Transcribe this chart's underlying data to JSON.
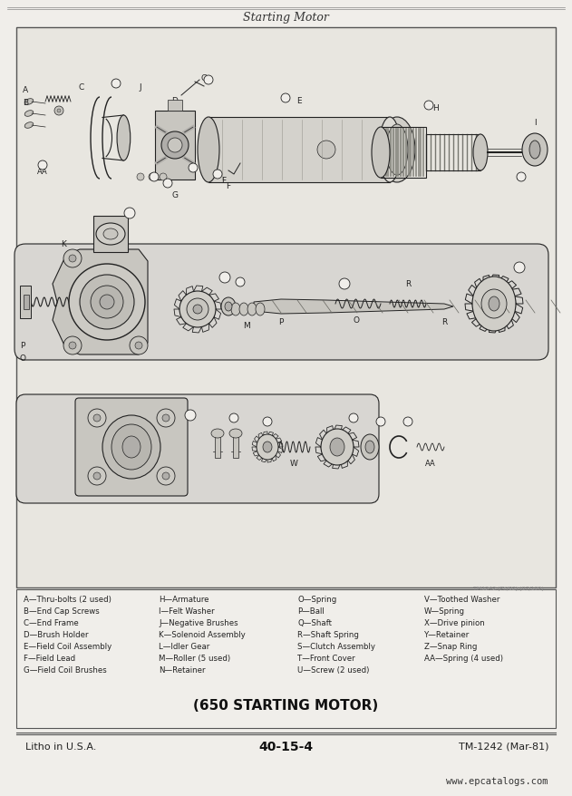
{
  "title": "Starting Motor",
  "subtitle": "(650 STARTING MOTOR)",
  "page_num": "40-15-4",
  "tm_num": "TM-1242 (Mar-81)",
  "litho": "Litho in U.S.A.",
  "website": "www.epcatalogs.com",
  "bg_color": "#f0eeea",
  "page_bg": "#f0eeea",
  "diagram_bg": "#e8e6e0",
  "border_color": "#555555",
  "line_color": "#222222",
  "fill_light": "#d8d6d0",
  "fill_mid": "#c8c6c0",
  "fill_dark": "#b0aeaa",
  "fill_white": "#f0eeea",
  "legend_col1": [
    "A—Thru-bolts (2 used)",
    "B—End Cap Screws",
    "C—End Frame",
    "D—Brush Holder",
    "E—Field Coil Assembly",
    "F—Field Lead",
    "G—Field Coil Brushes"
  ],
  "legend_col2": [
    "H—Armature",
    "I—Felt Washer",
    "J—Negative Brushes",
    "K—Solenoid Assembly",
    "L—Idler Gear",
    "M—Roller (5 used)",
    "N—Retainer"
  ],
  "legend_col3": [
    "O—Spring",
    "P—Ball",
    "Q—Shaft",
    "R—Shaft Spring",
    "S—Clutch Assembly",
    "T—Front Cover",
    "U—Screw (2 used)"
  ],
  "legend_col4": [
    "V—Toothed Washer",
    "W—Spring",
    "X—Drive pinion",
    "Y—Retainer",
    "Z—Snap Ring",
    "AA—Spring (4 used)"
  ]
}
